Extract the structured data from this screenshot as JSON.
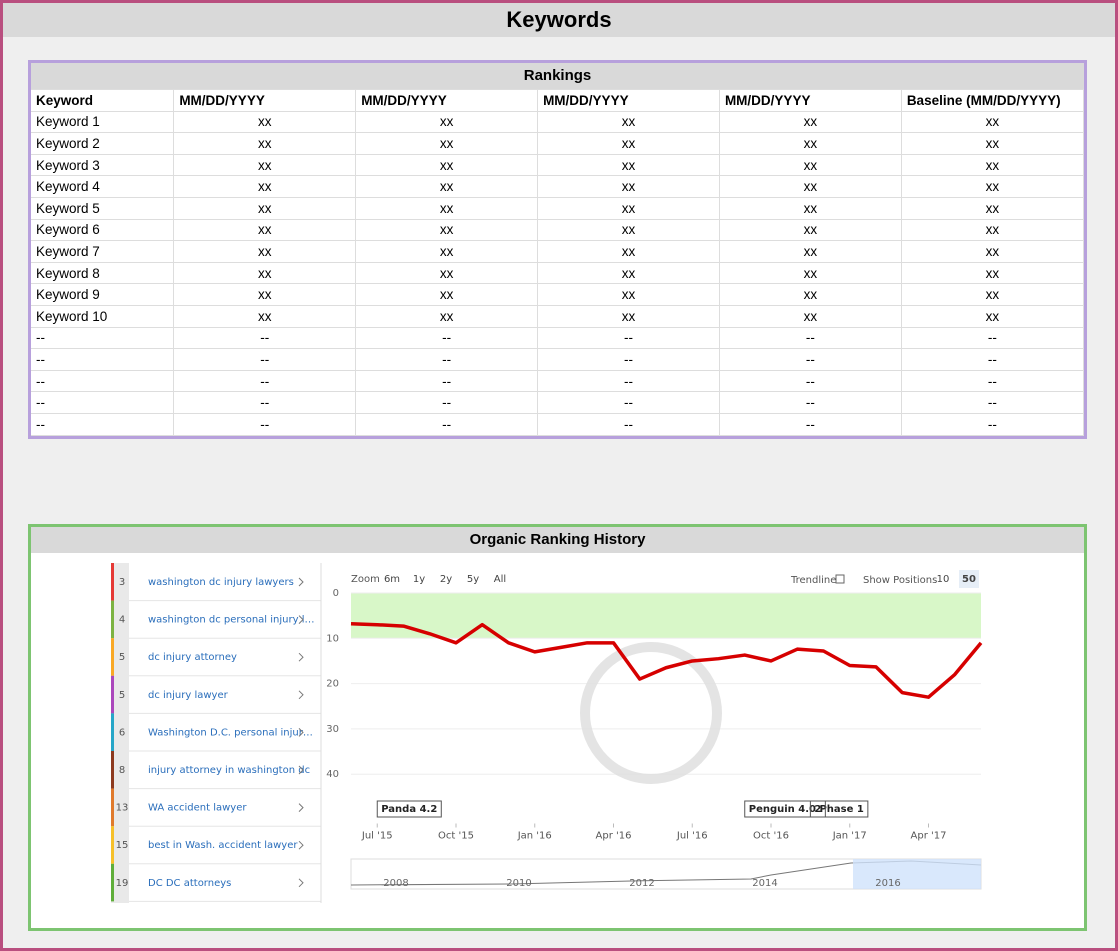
{
  "title": "Keywords",
  "rankings": {
    "title": "Rankings",
    "header": [
      "Keyword",
      "MM/DD/YYYY",
      "MM/DD/YYYY",
      "MM/DD/YYYY",
      "MM/DD/YYYY",
      "Baseline (MM/DD/YYYY)"
    ],
    "rows": [
      [
        "Keyword 1",
        "xx",
        "xx",
        "xx",
        "xx",
        "xx"
      ],
      [
        "Keyword 2",
        "xx",
        "xx",
        "xx",
        "xx",
        "xx"
      ],
      [
        "Keyword 3",
        "xx",
        "xx",
        "xx",
        "xx",
        "xx"
      ],
      [
        "Keyword 4",
        "xx",
        "xx",
        "xx",
        "xx",
        "xx"
      ],
      [
        "Keyword 5",
        "xx",
        "xx",
        "xx",
        "xx",
        "xx"
      ],
      [
        "Keyword 6",
        "xx",
        "xx",
        "xx",
        "xx",
        "xx"
      ],
      [
        "Keyword 7",
        "xx",
        "xx",
        "xx",
        "xx",
        "xx"
      ],
      [
        "Keyword 8",
        "xx",
        "xx",
        "xx",
        "xx",
        "xx"
      ],
      [
        "Keyword 9",
        "xx",
        "xx",
        "xx",
        "xx",
        "xx"
      ],
      [
        "Keyword 10",
        "xx",
        "xx",
        "xx",
        "xx",
        "xx"
      ],
      [
        "--",
        "--",
        "--",
        "--",
        "--",
        "--"
      ],
      [
        "--",
        "--",
        "--",
        "--",
        "--",
        "--"
      ],
      [
        "--",
        "--",
        "--",
        "--",
        "--",
        "--"
      ],
      [
        "--",
        "--",
        "--",
        "--",
        "--",
        "--"
      ],
      [
        "--",
        "--",
        "--",
        "--",
        "--",
        "--"
      ]
    ]
  },
  "history": {
    "title": "Organic Ranking History",
    "keywords": [
      {
        "position": "3",
        "label": "washington dc injury lawyers",
        "color": "#e53935"
      },
      {
        "position": "4",
        "label": "washington dc personal injury l…",
        "color": "#7cb342"
      },
      {
        "position": "5",
        "label": "dc injury attorney",
        "color": "#f9a825"
      },
      {
        "position": "5",
        "label": "dc injury lawyer",
        "color": "#ab47bc"
      },
      {
        "position": "6",
        "label": "Washington D.C. personal injur…",
        "color": "#26a6c8"
      },
      {
        "position": "8",
        "label": "injury attorney in washington dc",
        "color": "#8d3a1f"
      },
      {
        "position": "13",
        "label": "WA accident lawyer",
        "color": "#e07a2c"
      },
      {
        "position": "15",
        "label": "best in Wash. accident lawyer",
        "color": "#f6c02a"
      },
      {
        "position": "19",
        "label": "DC DC attorneys",
        "color": "#5fae3a"
      }
    ],
    "zoom_label": "Zoom",
    "zoom_buttons": [
      "6m",
      "1y",
      "2y",
      "5y",
      "All"
    ],
    "trendline_label": "Trendline",
    "positions_label": "Show Positions",
    "positions_buttons": [
      "10",
      "50"
    ],
    "chart_data": {
      "type": "line",
      "xlim": [
        -1,
        23
      ],
      "ylim": [
        0,
        50
      ],
      "y_inverted": true,
      "yticks": [
        0,
        10,
        20,
        30,
        40
      ],
      "xticks": [
        {
          "value": 0,
          "label": "Jul '15"
        },
        {
          "value": 3,
          "label": "Oct '15"
        },
        {
          "value": 6,
          "label": "Jan '16"
        },
        {
          "value": 9,
          "label": "Apr '16"
        },
        {
          "value": 12,
          "label": "Jul '16"
        },
        {
          "value": 15,
          "label": "Oct '16"
        },
        {
          "value": 18,
          "label": "Jan '17"
        },
        {
          "value": 21,
          "label": "Apr '17"
        }
      ],
      "band": [
        0,
        10
      ],
      "band_color": "#d8f7c8",
      "x": [
        -1,
        0,
        1,
        2,
        3,
        4,
        5,
        6,
        7,
        8,
        9,
        10,
        11,
        12,
        13,
        14,
        15,
        16,
        17,
        18,
        19,
        20,
        21,
        22,
        23
      ],
      "series": [
        {
          "name": "Trendline",
          "color": "#d60000",
          "values": [
            6.8,
            7,
            7.3,
            9,
            11,
            7,
            11,
            13,
            12,
            11,
            11,
            19,
            16.5,
            15,
            14.5,
            13.7,
            15,
            12.4,
            12.8,
            16,
            16.3,
            22,
            23,
            18,
            11
          ]
        }
      ],
      "annotations": [
        {
          "x": 0,
          "label": "Panda 4.2"
        },
        {
          "x": 14,
          "label": "Penguin 4.0 Phase 1"
        },
        {
          "x": 16.5,
          "label": "2"
        }
      ]
    },
    "navigator_labels": [
      "2008",
      "2010",
      "2012",
      "2014",
      "2016"
    ]
  }
}
